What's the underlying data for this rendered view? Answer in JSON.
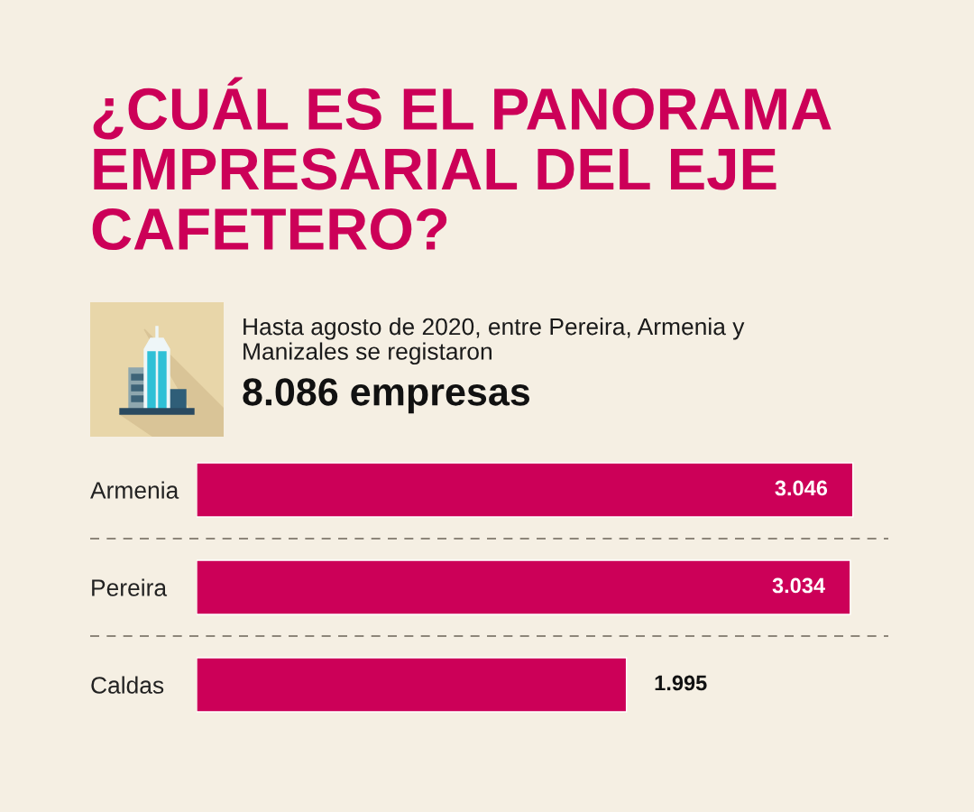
{
  "chart_data": {
    "type": "bar",
    "orientation": "horizontal",
    "title": "¿CUÁL ES EL PANORAMA EMPRESARIAL DEL EJE CAFETERO?",
    "subtitle": "Hasta agosto de 2020, entre Pereira, Armenia y Manizales se registaron",
    "annotations": [
      "8.086 empresas"
    ],
    "categories": [
      "Armenia",
      "Pereira",
      "Caldas"
    ],
    "values": [
      3046,
      3034,
      1995
    ],
    "value_labels": [
      "3.046",
      "3.034",
      "1.995"
    ],
    "color": "#cc0058",
    "grid": "y",
    "tick_labels": "y"
  }
}
